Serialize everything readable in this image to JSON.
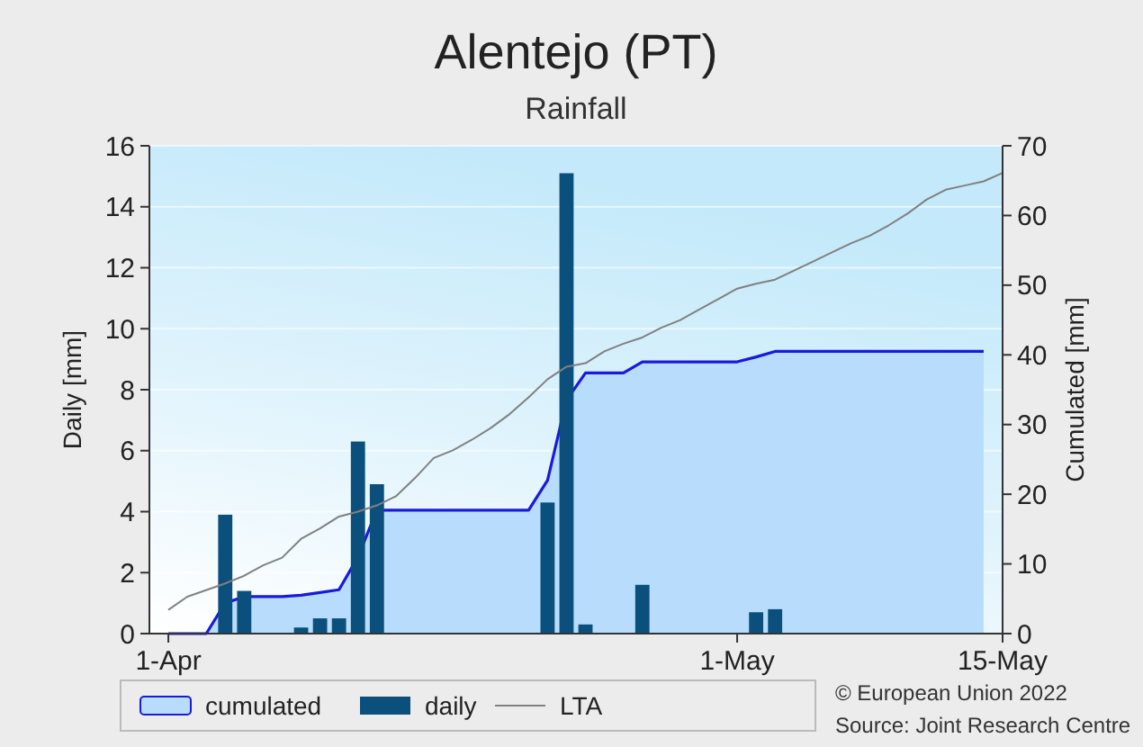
{
  "chart_data": {
    "type": "bar",
    "title": "Alentejo (PT)",
    "subtitle": "Rainfall",
    "ylabel": "Daily [mm]",
    "y2label": "Cumulated [mm]",
    "xlim": [
      "--03-31",
      "--05-15"
    ],
    "xticks": [
      {
        "value": "--04-01",
        "label": "1-Apr"
      },
      {
        "value": "--05-01",
        "label": "1-May"
      },
      {
        "value": "--05-15",
        "label": "15-May"
      }
    ],
    "ylim": [
      0,
      16
    ],
    "yticks": [
      0,
      2,
      4,
      6,
      8,
      10,
      12,
      14,
      16
    ],
    "y2lim": [
      0,
      70
    ],
    "y2ticks": [
      0,
      10,
      20,
      30,
      40,
      50,
      60,
      70
    ],
    "grid": "y",
    "legend": "bottom",
    "series": [
      {
        "name": "cumulated",
        "type": "area",
        "axis": "y2",
        "color": "#1a1adb",
        "x": [
          "--04-01",
          "--04-02",
          "--04-03",
          "--04-04",
          "--04-05",
          "--04-06",
          "--04-07",
          "--04-08",
          "--04-09",
          "--04-10",
          "--04-11",
          "--04-12",
          "--04-20",
          "--04-21",
          "--04-22",
          "--04-23",
          "--04-25",
          "--04-26",
          "--05-01",
          "--05-02",
          "--05-03",
          "--05-14"
        ],
        "values": [
          0,
          0,
          0,
          4.4,
          5.3,
          5.3,
          5.3,
          5.5,
          5.9,
          6.3,
          11,
          17.7,
          17.7,
          22,
          33.5,
          37.4,
          37.4,
          39,
          39,
          39.7,
          40.5,
          40.5
        ]
      },
      {
        "name": "daily",
        "color": "#0b4f7c",
        "x": [
          "--04-04",
          "--04-05",
          "--04-08",
          "--04-09",
          "--04-10",
          "--04-11",
          "--04-12",
          "--04-21",
          "--04-22",
          "--04-23",
          "--04-26",
          "--05-02",
          "--05-03"
        ],
        "values": [
          3.9,
          1.4,
          0.2,
          0.5,
          0.5,
          6.3,
          4.9,
          4.3,
          15.1,
          0.3,
          1.6,
          0.7,
          0.8
        ]
      },
      {
        "name": "LTA",
        "type": "line",
        "axis": "y2",
        "color": "#808080",
        "x": [
          "--04-01",
          "--04-02",
          "--04-04",
          "--04-05",
          "--04-06",
          "--04-07",
          "--04-08",
          "--04-09",
          "--04-10",
          "--04-11",
          "--04-12",
          "--04-13",
          "--04-14",
          "--04-15",
          "--04-16",
          "--04-17",
          "--04-18",
          "--04-19",
          "--04-20",
          "--04-21",
          "--04-22",
          "--04-23",
          "--04-24",
          "--04-25",
          "--04-26",
          "--04-27",
          "--04-28",
          "--04-29",
          "--04-30",
          "--05-01",
          "--05-02",
          "--05-03",
          "--05-04",
          "--05-05",
          "--05-06",
          "--05-07",
          "--05-08",
          "--05-09",
          "--05-10",
          "--05-11",
          "--05-12",
          "--05-13",
          "--05-14",
          "--05-15"
        ],
        "values": [
          3.4,
          5.3,
          7.2,
          8.3,
          9.8,
          10.9,
          13.6,
          15.1,
          16.8,
          17.5,
          18.4,
          19.7,
          22.3,
          25.2,
          26.3,
          27.8,
          29.5,
          31.5,
          33.9,
          36.5,
          38.3,
          38.8,
          40.5,
          41.6,
          42.5,
          43.9,
          45,
          46.5,
          48,
          49.5,
          50.2,
          50.8,
          52.1,
          53.4,
          54.7,
          56,
          57.1,
          58.6,
          60.3,
          62.3,
          63.7,
          64.3,
          64.9,
          66.1
        ]
      }
    ],
    "annotations": [
      "© European Union 2022",
      "Source: Joint Research Centre"
    ]
  }
}
